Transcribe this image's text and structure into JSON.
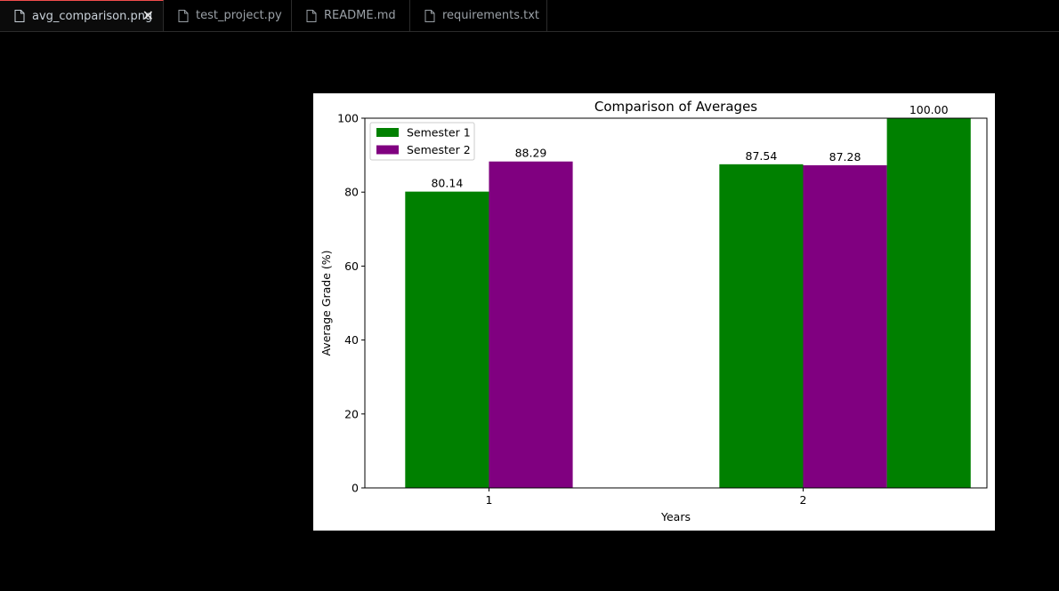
{
  "tabs": [
    {
      "label": "avg_comparison.png",
      "active": true,
      "closable": true,
      "icon": "file-icon"
    },
    {
      "label": "test_project.py",
      "active": false,
      "icon": "file-icon"
    },
    {
      "label": "README.md",
      "active": false,
      "icon": "file-icon"
    },
    {
      "label": "requirements.txt",
      "active": false,
      "icon": "file-icon"
    }
  ],
  "close_glyph": "✕",
  "chart_data": {
    "type": "bar",
    "title": "Comparison of Averages",
    "xlabel": "Years",
    "ylabel": "Average Grade (%)",
    "ylim": [
      0,
      100
    ],
    "yticks": [
      "0",
      "20",
      "40",
      "60",
      "80",
      "100"
    ],
    "xticks": [
      "1",
      "2"
    ],
    "legend_position": "top-left",
    "grid": false,
    "bars": [
      {
        "series": "Semester 1",
        "x": 1,
        "value": 80.14,
        "label": "80.14",
        "color": "#008000"
      },
      {
        "series": "Semester 2",
        "x": 1,
        "value": 88.29,
        "label": "88.29",
        "color": "#800080"
      },
      {
        "series": "Semester 1",
        "x": 2,
        "value": 87.54,
        "label": "87.54",
        "color": "#008000"
      },
      {
        "series": "Semester 2",
        "x": 2,
        "value": 87.28,
        "label": "87.28",
        "color": "#800080"
      },
      {
        "series": "Semester 1",
        "x": 2,
        "value": 100.0,
        "label": "100.00",
        "color": "#008000"
      }
    ],
    "legend": [
      {
        "name": "Semester 1",
        "color": "#008000"
      },
      {
        "name": "Semester 2",
        "color": "#800080"
      }
    ]
  }
}
